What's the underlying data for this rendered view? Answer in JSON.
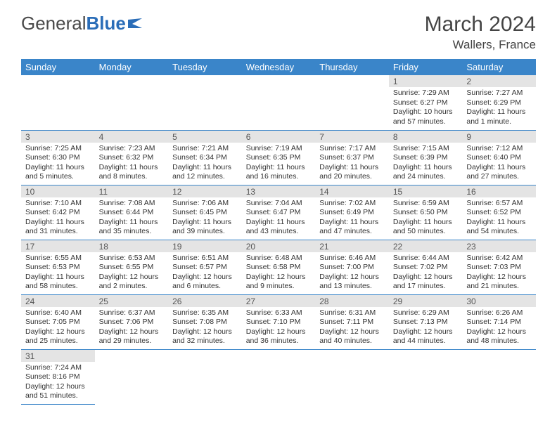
{
  "logo": {
    "text1": "General",
    "text2": "Blue"
  },
  "header": {
    "title": "March 2024",
    "location": "Wallers, France"
  },
  "colors": {
    "header_bg": "#3a85c9",
    "header_fg": "#ffffff",
    "daynum_bg": "#e4e4e4",
    "border": "#3a85c9",
    "logo_blue": "#2a6db8"
  },
  "weekdays": [
    "Sunday",
    "Monday",
    "Tuesday",
    "Wednesday",
    "Thursday",
    "Friday",
    "Saturday"
  ],
  "weeks": [
    [
      {
        "n": "",
        "lines": [
          "",
          "",
          "",
          ""
        ]
      },
      {
        "n": "",
        "lines": [
          "",
          "",
          "",
          ""
        ]
      },
      {
        "n": "",
        "lines": [
          "",
          "",
          "",
          ""
        ]
      },
      {
        "n": "",
        "lines": [
          "",
          "",
          "",
          ""
        ]
      },
      {
        "n": "",
        "lines": [
          "",
          "",
          "",
          ""
        ]
      },
      {
        "n": "1",
        "lines": [
          "Sunrise: 7:29 AM",
          "Sunset: 6:27 PM",
          "Daylight: 10 hours",
          "and 57 minutes."
        ]
      },
      {
        "n": "2",
        "lines": [
          "Sunrise: 7:27 AM",
          "Sunset: 6:29 PM",
          "Daylight: 11 hours",
          "and 1 minute."
        ]
      }
    ],
    [
      {
        "n": "3",
        "lines": [
          "Sunrise: 7:25 AM",
          "Sunset: 6:30 PM",
          "Daylight: 11 hours",
          "and 5 minutes."
        ]
      },
      {
        "n": "4",
        "lines": [
          "Sunrise: 7:23 AM",
          "Sunset: 6:32 PM",
          "Daylight: 11 hours",
          "and 8 minutes."
        ]
      },
      {
        "n": "5",
        "lines": [
          "Sunrise: 7:21 AM",
          "Sunset: 6:34 PM",
          "Daylight: 11 hours",
          "and 12 minutes."
        ]
      },
      {
        "n": "6",
        "lines": [
          "Sunrise: 7:19 AM",
          "Sunset: 6:35 PM",
          "Daylight: 11 hours",
          "and 16 minutes."
        ]
      },
      {
        "n": "7",
        "lines": [
          "Sunrise: 7:17 AM",
          "Sunset: 6:37 PM",
          "Daylight: 11 hours",
          "and 20 minutes."
        ]
      },
      {
        "n": "8",
        "lines": [
          "Sunrise: 7:15 AM",
          "Sunset: 6:39 PM",
          "Daylight: 11 hours",
          "and 24 minutes."
        ]
      },
      {
        "n": "9",
        "lines": [
          "Sunrise: 7:12 AM",
          "Sunset: 6:40 PM",
          "Daylight: 11 hours",
          "and 27 minutes."
        ]
      }
    ],
    [
      {
        "n": "10",
        "lines": [
          "Sunrise: 7:10 AM",
          "Sunset: 6:42 PM",
          "Daylight: 11 hours",
          "and 31 minutes."
        ]
      },
      {
        "n": "11",
        "lines": [
          "Sunrise: 7:08 AM",
          "Sunset: 6:44 PM",
          "Daylight: 11 hours",
          "and 35 minutes."
        ]
      },
      {
        "n": "12",
        "lines": [
          "Sunrise: 7:06 AM",
          "Sunset: 6:45 PM",
          "Daylight: 11 hours",
          "and 39 minutes."
        ]
      },
      {
        "n": "13",
        "lines": [
          "Sunrise: 7:04 AM",
          "Sunset: 6:47 PM",
          "Daylight: 11 hours",
          "and 43 minutes."
        ]
      },
      {
        "n": "14",
        "lines": [
          "Sunrise: 7:02 AM",
          "Sunset: 6:49 PM",
          "Daylight: 11 hours",
          "and 47 minutes."
        ]
      },
      {
        "n": "15",
        "lines": [
          "Sunrise: 6:59 AM",
          "Sunset: 6:50 PM",
          "Daylight: 11 hours",
          "and 50 minutes."
        ]
      },
      {
        "n": "16",
        "lines": [
          "Sunrise: 6:57 AM",
          "Sunset: 6:52 PM",
          "Daylight: 11 hours",
          "and 54 minutes."
        ]
      }
    ],
    [
      {
        "n": "17",
        "lines": [
          "Sunrise: 6:55 AM",
          "Sunset: 6:53 PM",
          "Daylight: 11 hours",
          "and 58 minutes."
        ]
      },
      {
        "n": "18",
        "lines": [
          "Sunrise: 6:53 AM",
          "Sunset: 6:55 PM",
          "Daylight: 12 hours",
          "and 2 minutes."
        ]
      },
      {
        "n": "19",
        "lines": [
          "Sunrise: 6:51 AM",
          "Sunset: 6:57 PM",
          "Daylight: 12 hours",
          "and 6 minutes."
        ]
      },
      {
        "n": "20",
        "lines": [
          "Sunrise: 6:48 AM",
          "Sunset: 6:58 PM",
          "Daylight: 12 hours",
          "and 9 minutes."
        ]
      },
      {
        "n": "21",
        "lines": [
          "Sunrise: 6:46 AM",
          "Sunset: 7:00 PM",
          "Daylight: 12 hours",
          "and 13 minutes."
        ]
      },
      {
        "n": "22",
        "lines": [
          "Sunrise: 6:44 AM",
          "Sunset: 7:02 PM",
          "Daylight: 12 hours",
          "and 17 minutes."
        ]
      },
      {
        "n": "23",
        "lines": [
          "Sunrise: 6:42 AM",
          "Sunset: 7:03 PM",
          "Daylight: 12 hours",
          "and 21 minutes."
        ]
      }
    ],
    [
      {
        "n": "24",
        "lines": [
          "Sunrise: 6:40 AM",
          "Sunset: 7:05 PM",
          "Daylight: 12 hours",
          "and 25 minutes."
        ]
      },
      {
        "n": "25",
        "lines": [
          "Sunrise: 6:37 AM",
          "Sunset: 7:06 PM",
          "Daylight: 12 hours",
          "and 29 minutes."
        ]
      },
      {
        "n": "26",
        "lines": [
          "Sunrise: 6:35 AM",
          "Sunset: 7:08 PM",
          "Daylight: 12 hours",
          "and 32 minutes."
        ]
      },
      {
        "n": "27",
        "lines": [
          "Sunrise: 6:33 AM",
          "Sunset: 7:10 PM",
          "Daylight: 12 hours",
          "and 36 minutes."
        ]
      },
      {
        "n": "28",
        "lines": [
          "Sunrise: 6:31 AM",
          "Sunset: 7:11 PM",
          "Daylight: 12 hours",
          "and 40 minutes."
        ]
      },
      {
        "n": "29",
        "lines": [
          "Sunrise: 6:29 AM",
          "Sunset: 7:13 PM",
          "Daylight: 12 hours",
          "and 44 minutes."
        ]
      },
      {
        "n": "30",
        "lines": [
          "Sunrise: 6:26 AM",
          "Sunset: 7:14 PM",
          "Daylight: 12 hours",
          "and 48 minutes."
        ]
      }
    ],
    [
      {
        "n": "31",
        "lines": [
          "Sunrise: 7:24 AM",
          "Sunset: 8:16 PM",
          "Daylight: 12 hours",
          "and 51 minutes."
        ]
      },
      {
        "n": "",
        "lines": [
          "",
          "",
          "",
          ""
        ]
      },
      {
        "n": "",
        "lines": [
          "",
          "",
          "",
          ""
        ]
      },
      {
        "n": "",
        "lines": [
          "",
          "",
          "",
          ""
        ]
      },
      {
        "n": "",
        "lines": [
          "",
          "",
          "",
          ""
        ]
      },
      {
        "n": "",
        "lines": [
          "",
          "",
          "",
          ""
        ]
      },
      {
        "n": "",
        "lines": [
          "",
          "",
          "",
          ""
        ]
      }
    ]
  ]
}
